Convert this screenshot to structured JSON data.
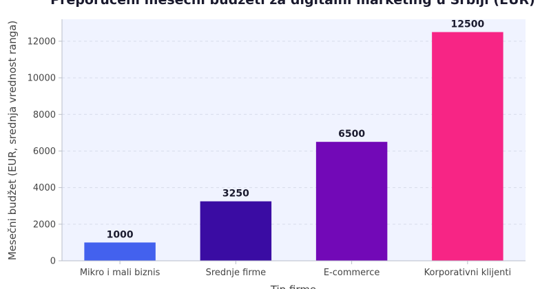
{
  "chart_data": {
    "type": "bar",
    "title": "Preporučeni mesečni budžeti za digitalni marketing u Srbiji (EUR)",
    "xlabel": "Tip firme",
    "ylabel": "Mesečni budžet (EUR, srednja vrednost ranga)",
    "categories": [
      "Mikro i mali biznis",
      "Srednje firme",
      "E-commerce",
      "Korporativni klijenti"
    ],
    "values": [
      1000,
      3250,
      6500,
      12500
    ],
    "data_labels": [
      "1000",
      "3250",
      "6500",
      "12500"
    ],
    "colors": [
      "#4361ee",
      "#3a0ca3",
      "#7209b7",
      "#f72585"
    ],
    "ylim": [
      0,
      13200
    ],
    "yticks": [
      0,
      2000,
      4000,
      6000,
      8000,
      10000,
      12000
    ],
    "grid": true,
    "plot_background": "#f0f3ff"
  }
}
